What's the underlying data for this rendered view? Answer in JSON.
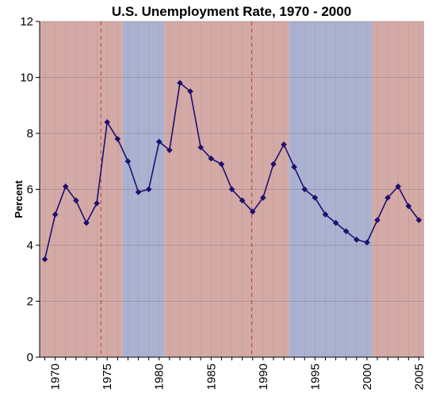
{
  "chart_data": {
    "type": "line",
    "title": "U.S. Unemployment Rate, 1970 - 2000",
    "xlabel": "",
    "ylabel": "Percent",
    "xlim": [
      1968.5,
      2005.5
    ],
    "ylim": [
      0,
      12
    ],
    "yticks": [
      0,
      2,
      4,
      6,
      8,
      10,
      12
    ],
    "xticks": [
      1970,
      1975,
      1980,
      1985,
      1990,
      1995,
      2000,
      2005
    ],
    "grid": true,
    "legend": "none",
    "colors": {
      "line": "#1f0f6e",
      "shade_red": "#d4aaa6",
      "shade_blue": "#aab2d2",
      "grid": "#b08a8a",
      "dashed": "#c04040"
    },
    "shaded_periods": [
      {
        "start": 1968.5,
        "end": 1976.5,
        "color": "red"
      },
      {
        "start": 1976.5,
        "end": 1980.5,
        "color": "blue"
      },
      {
        "start": 1980.5,
        "end": 1992.5,
        "color": "red"
      },
      {
        "start": 1992.5,
        "end": 2000.5,
        "color": "blue"
      },
      {
        "start": 2000.5,
        "end": 2005.5,
        "color": "red"
      }
    ],
    "dashed_lines": [
      1974.4,
      1988.9
    ],
    "series": [
      {
        "x": [
          1969,
          1970,
          1971,
          1972,
          1973,
          1974,
          1975,
          1976,
          1977,
          1978,
          1979,
          1980,
          1981,
          1982,
          1983,
          1984,
          1985,
          1986,
          1987,
          1988,
          1989,
          1990,
          1991,
          1992,
          1993,
          1994,
          1995,
          1996,
          1997,
          1998,
          1999,
          2000,
          2001,
          2002,
          2003,
          2004,
          2005
        ],
        "values": [
          3.5,
          5.1,
          6.1,
          5.6,
          4.8,
          5.5,
          8.4,
          7.8,
          7.0,
          5.9,
          6.0,
          7.7,
          7.4,
          9.8,
          9.5,
          7.5,
          7.1,
          6.9,
          6.0,
          5.6,
          5.2,
          5.7,
          6.9,
          7.6,
          6.8,
          6.0,
          5.7,
          5.1,
          4.8,
          4.5,
          4.2,
          4.1,
          4.9,
          5.7,
          6.1,
          5.4,
          4.9
        ]
      }
    ]
  }
}
